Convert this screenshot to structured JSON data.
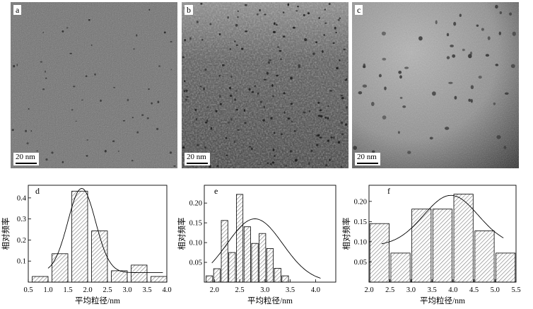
{
  "micrographs": [
    {
      "label": "a",
      "scale_bar": "20 nm",
      "tone": "uniform-gray"
    },
    {
      "label": "b",
      "scale_bar": "20 nm",
      "tone": "dark-mottled"
    },
    {
      "label": "c",
      "scale_bar": "20 nm",
      "tone": "light-with-dark-corner"
    }
  ],
  "chart_data": [
    {
      "type": "bar",
      "panel": "d",
      "xlabel": "平均粒径/nm",
      "ylabel": "相对频率",
      "xlim": [
        0.5,
        4.0
      ],
      "ylim": [
        0,
        0.46
      ],
      "xticks": [
        "0.5",
        "1.0",
        "1.5",
        "2.0",
        "2.5",
        "3.0",
        "3.5",
        "4.0"
      ],
      "yticks": [
        "0.1",
        "0.2",
        "0.3",
        "0.4"
      ],
      "bars": [
        {
          "x": 0.8,
          "value": 0.027
        },
        {
          "x": 1.3,
          "value": 0.135
        },
        {
          "x": 1.8,
          "value": 0.432
        },
        {
          "x": 2.3,
          "value": 0.243
        },
        {
          "x": 2.8,
          "value": 0.054
        },
        {
          "x": 3.3,
          "value": 0.081
        },
        {
          "x": 3.8,
          "value": 0.027
        }
      ],
      "bar_width": 0.4,
      "fit": {
        "type": "gaussian",
        "baseline": 0.045,
        "amplitude": 0.4,
        "mu": 1.85,
        "sigma": 0.35,
        "x_range": [
          1.0,
          3.9
        ]
      }
    },
    {
      "type": "bar",
      "panel": "e",
      "xlabel": "平均粒径/nm",
      "ylabel": "相对频率",
      "xlim": [
        1.8,
        4.4
      ],
      "ylim": [
        0,
        0.245
      ],
      "xticks": [
        "2.0",
        "2.5",
        "3.0",
        "3.5",
        "4.0"
      ],
      "xtick_values": [
        2.0,
        2.5,
        3.0,
        3.5,
        4.0
      ],
      "yticks": [
        "0.05",
        "0.10",
        "0.15",
        "0.20"
      ],
      "bars": [
        {
          "x": 1.9,
          "value": 0.016
        },
        {
          "x": 2.05,
          "value": 0.034
        },
        {
          "x": 2.2,
          "value": 0.156
        },
        {
          "x": 2.35,
          "value": 0.075
        },
        {
          "x": 2.5,
          "value": 0.222
        },
        {
          "x": 2.65,
          "value": 0.14
        },
        {
          "x": 2.8,
          "value": 0.098
        },
        {
          "x": 2.95,
          "value": 0.123
        },
        {
          "x": 3.1,
          "value": 0.085
        },
        {
          "x": 3.25,
          "value": 0.035
        },
        {
          "x": 3.4,
          "value": 0.016
        }
      ],
      "bar_width": 0.13,
      "fit": {
        "type": "gaussian",
        "baseline": 0.0,
        "amplitude": 0.16,
        "mu": 2.8,
        "sigma": 0.55,
        "x_range": [
          1.95,
          4.1
        ]
      }
    },
    {
      "type": "bar",
      "panel": "f",
      "xlabel": "平均粒径/nm",
      "ylabel": "相对频率",
      "xlim": [
        2.0,
        5.5
      ],
      "ylim": [
        0,
        0.24
      ],
      "xticks": [
        "2.0",
        "2.5",
        "3.0",
        "3.5",
        "4.0",
        "4.5",
        "5.0",
        "5.5"
      ],
      "yticks": [
        "0.05",
        "0.10",
        "0.15",
        "0.20"
      ],
      "bars": [
        {
          "x": 2.25,
          "value": 0.145
        },
        {
          "x": 2.75,
          "value": 0.072
        },
        {
          "x": 3.25,
          "value": 0.181
        },
        {
          "x": 3.75,
          "value": 0.181
        },
        {
          "x": 4.25,
          "value": 0.218
        },
        {
          "x": 4.75,
          "value": 0.127
        },
        {
          "x": 5.25,
          "value": 0.072
        }
      ],
      "bar_width": 0.46,
      "fit": {
        "type": "gaussian",
        "baseline": 0.09,
        "amplitude": 0.125,
        "mu": 3.95,
        "sigma": 0.65,
        "x_range": [
          2.3,
          5.2
        ]
      }
    }
  ]
}
